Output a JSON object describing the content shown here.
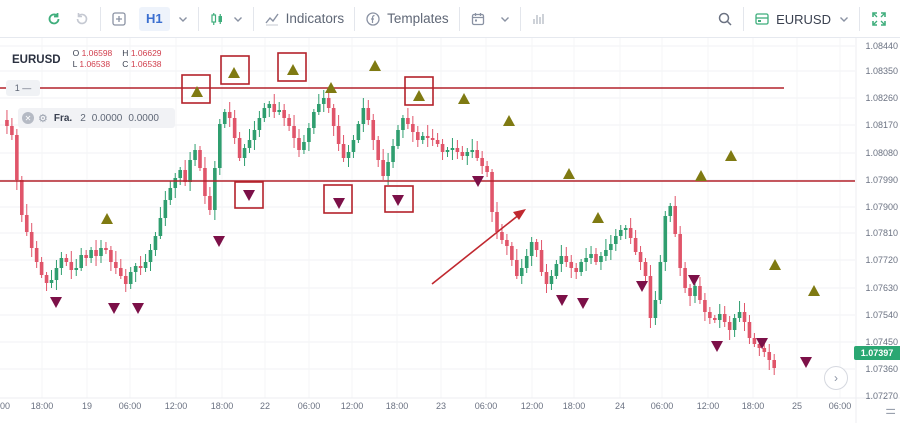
{
  "toolbar": {
    "timeframe": "H1",
    "indicators_label": "Indicators",
    "templates_label": "Templates",
    "symbol": "EURUSD"
  },
  "legend": {
    "symbol": "EURUSD",
    "o_key": "O",
    "o_val": "1.06598",
    "h_key": "H",
    "h_val": "1.06629",
    "l_key": "L",
    "l_val": "1.06538",
    "c_key": "C",
    "c_val": "1.06538"
  },
  "pane_tag": "1 —",
  "indicator": {
    "name": "Fra.",
    "p1": "2",
    "v1": "0.0000",
    "v2": "0.0000"
  },
  "price_axis": [
    "1.08440",
    "1.08350",
    "1.08260",
    "1.08170",
    "1.08080",
    "1.07990",
    "1.07900",
    "1.07810",
    "1.07720",
    "1.07630",
    "1.07540",
    "1.07450",
    "1.07360",
    "1.07270"
  ],
  "current_price": "1.07397",
  "time_axis": [
    "00",
    "18:00",
    "19",
    "06:00",
    "12:00",
    "18:00",
    "22",
    "06:00",
    "12:00",
    "18:00",
    "23",
    "06:00",
    "12:00",
    "18:00",
    "24",
    "06:00",
    "12:00",
    "18:00",
    "25",
    "06:00"
  ],
  "colors": {
    "up": "#2f9e6f",
    "down": "#e0556a",
    "level": "#b4222b",
    "fractal_up": "#7f7a12",
    "fractal_down": "#7c1048",
    "arrow": "#c0282f",
    "current_price_bg": "#2aa772"
  },
  "icons": [
    "refresh-icon",
    "redo-icon",
    "add-icon",
    "chevron-down-icon",
    "candles-icon",
    "indicators-icon",
    "templates-icon",
    "calendar-icon",
    "bars-icon",
    "search-icon",
    "symbol-icon",
    "fullscreen-icon",
    "settings-icon",
    "arrow-right-icon",
    "close-icon",
    "gear-icon"
  ]
}
